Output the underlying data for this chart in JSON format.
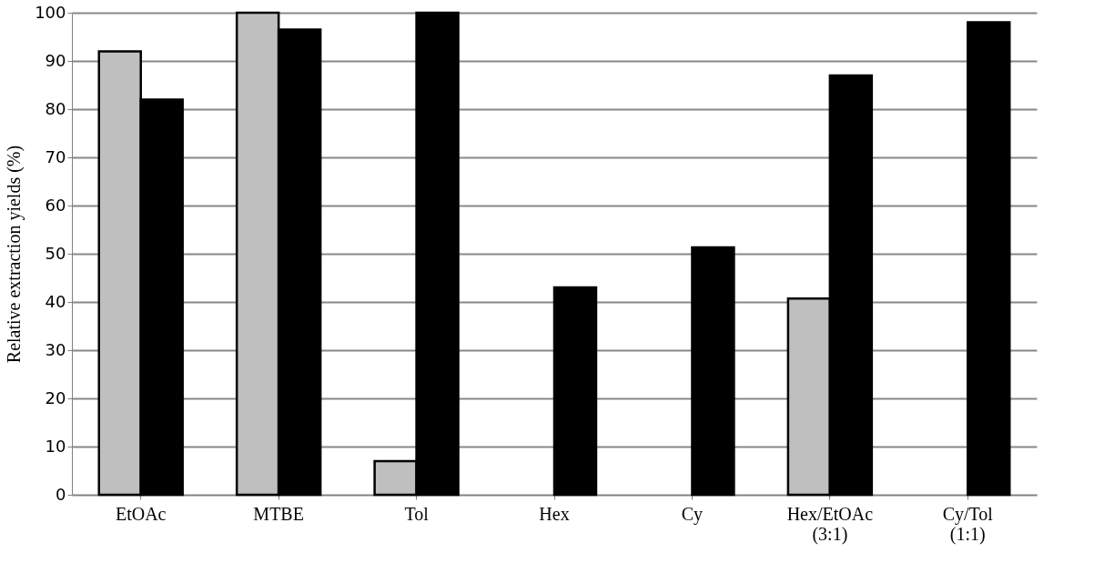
{
  "chart_data": {
    "type": "bar",
    "ylabel": "Relative extraction yields (%)",
    "categories": [
      "EtOAc",
      "MTBE",
      "Tol",
      "Hex",
      "Cy",
      "Hex/EtOAc (3:1)",
      "Cy/Tol (1:1)"
    ],
    "series": [
      {
        "color": "#bfbfbf",
        "values": [
          92,
          100,
          7,
          null,
          null,
          40.7,
          null
        ]
      },
      {
        "color": "#000000",
        "values": [
          82,
          96.5,
          100,
          43,
          51.3,
          87,
          98
        ]
      }
    ],
    "ylim": [
      0,
      100
    ],
    "yticks": [
      0,
      10,
      20,
      30,
      40,
      50,
      60,
      70,
      80,
      90,
      100
    ],
    "grid": "y"
  }
}
